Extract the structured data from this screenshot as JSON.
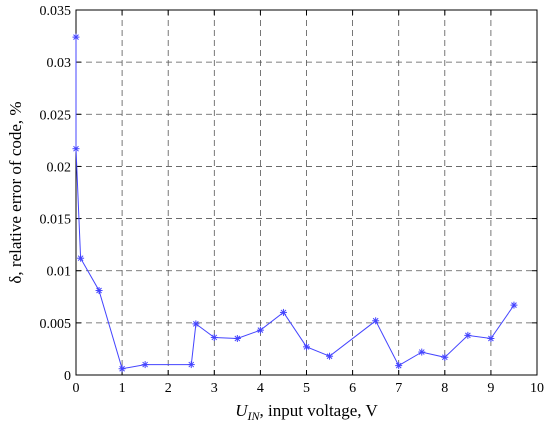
{
  "chart_data": {
    "type": "line",
    "xlabel_prefix": "U",
    "xlabel_subscript": "IN",
    "xlabel_suffix": ", input voltage, V",
    "ylabel": "δ, relative error of code, %",
    "xlim": [
      0,
      10
    ],
    "ylim": [
      0,
      0.035
    ],
    "x_ticks": [
      "0",
      "1",
      "2",
      "3",
      "4",
      "5",
      "6",
      "7",
      "8",
      "9",
      "10"
    ],
    "y_ticks": [
      "0",
      "0.005",
      "0.01",
      "0.015",
      "0.02",
      "0.025",
      "0.03",
      "0.035"
    ],
    "grid": true,
    "grid_style": "dashed",
    "marker": "asterisk",
    "line_color": "#4444ff",
    "series": [
      {
        "x": [
          0,
          0,
          0.1,
          0.5,
          1,
          1.5,
          2.5,
          2.6,
          3,
          3.5,
          4,
          4.5,
          5,
          5.5,
          6.5,
          7,
          7.5,
          8,
          8.5,
          9,
          9.5
        ],
        "y": [
          0.0324,
          0.0217,
          0.0112,
          0.0081,
          0.0006,
          0.001,
          0.001,
          0.0049,
          0.0036,
          0.0035,
          0.0043,
          0.006,
          0.0027,
          0.0018,
          0.0052,
          0.0009,
          0.0022,
          0.0017,
          0.0038,
          0.0035,
          0.0067
        ]
      }
    ]
  }
}
